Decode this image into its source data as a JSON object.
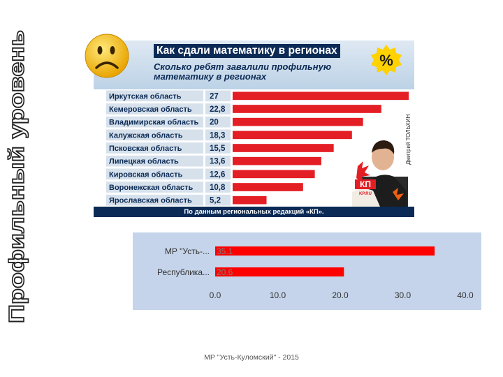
{
  "slide": {
    "vertical_title": "Профильный уровень",
    "footer": "МР \"Усть-Куломский\" - 2015"
  },
  "infographic": {
    "title": "Как сдали математику в регионах",
    "subtitle": "Сколько ребят завалили профильную математику в регионах",
    "footer": "По данным региональных редакций «КП».",
    "credit": "Дмитрий ТОЛЬХИН",
    "badge": "%",
    "logo": "КП",
    "logo_sub": "KP.RU",
    "colors": {
      "header_bg": "#0b2a55",
      "bar": "#e31e24",
      "label_bg": "#d6e1ec"
    }
  },
  "chart_data": [
    {
      "type": "bar",
      "orientation": "horizontal",
      "title": "Как сдали математику в регионах",
      "subtitle": "Сколько ребят завалили профильную математику в регионах",
      "categories": [
        "Иркутская область",
        "Кемеровская область",
        "Владимирская область",
        "Калужская область",
        "Псковская область",
        "Липецкая область",
        "Кировская область",
        "Воронежская область",
        "Ярославская область"
      ],
      "values": [
        27,
        22.8,
        20,
        18.3,
        15.5,
        13.6,
        12.6,
        10.8,
        5.2
      ],
      "value_labels": [
        "27",
        "22,8",
        "20",
        "18,3",
        "15,5",
        "13,6",
        "12,6",
        "10,8",
        "5,2"
      ],
      "xlim": [
        0,
        27
      ]
    },
    {
      "type": "bar",
      "orientation": "horizontal",
      "categories": [
        "МР \"Усть-...",
        "Республика..."
      ],
      "values": [
        35.1,
        20.6
      ],
      "value_labels": [
        "35.1",
        "20.6"
      ],
      "xlim": [
        0,
        40
      ],
      "ticks": [
        "0.0",
        "10.0",
        "20.0",
        "30.0",
        "40.0"
      ],
      "grid": false,
      "colors": {
        "background": "#c5d4ea",
        "bar": "#ff0000",
        "label": "#7f7f7f"
      }
    }
  ]
}
